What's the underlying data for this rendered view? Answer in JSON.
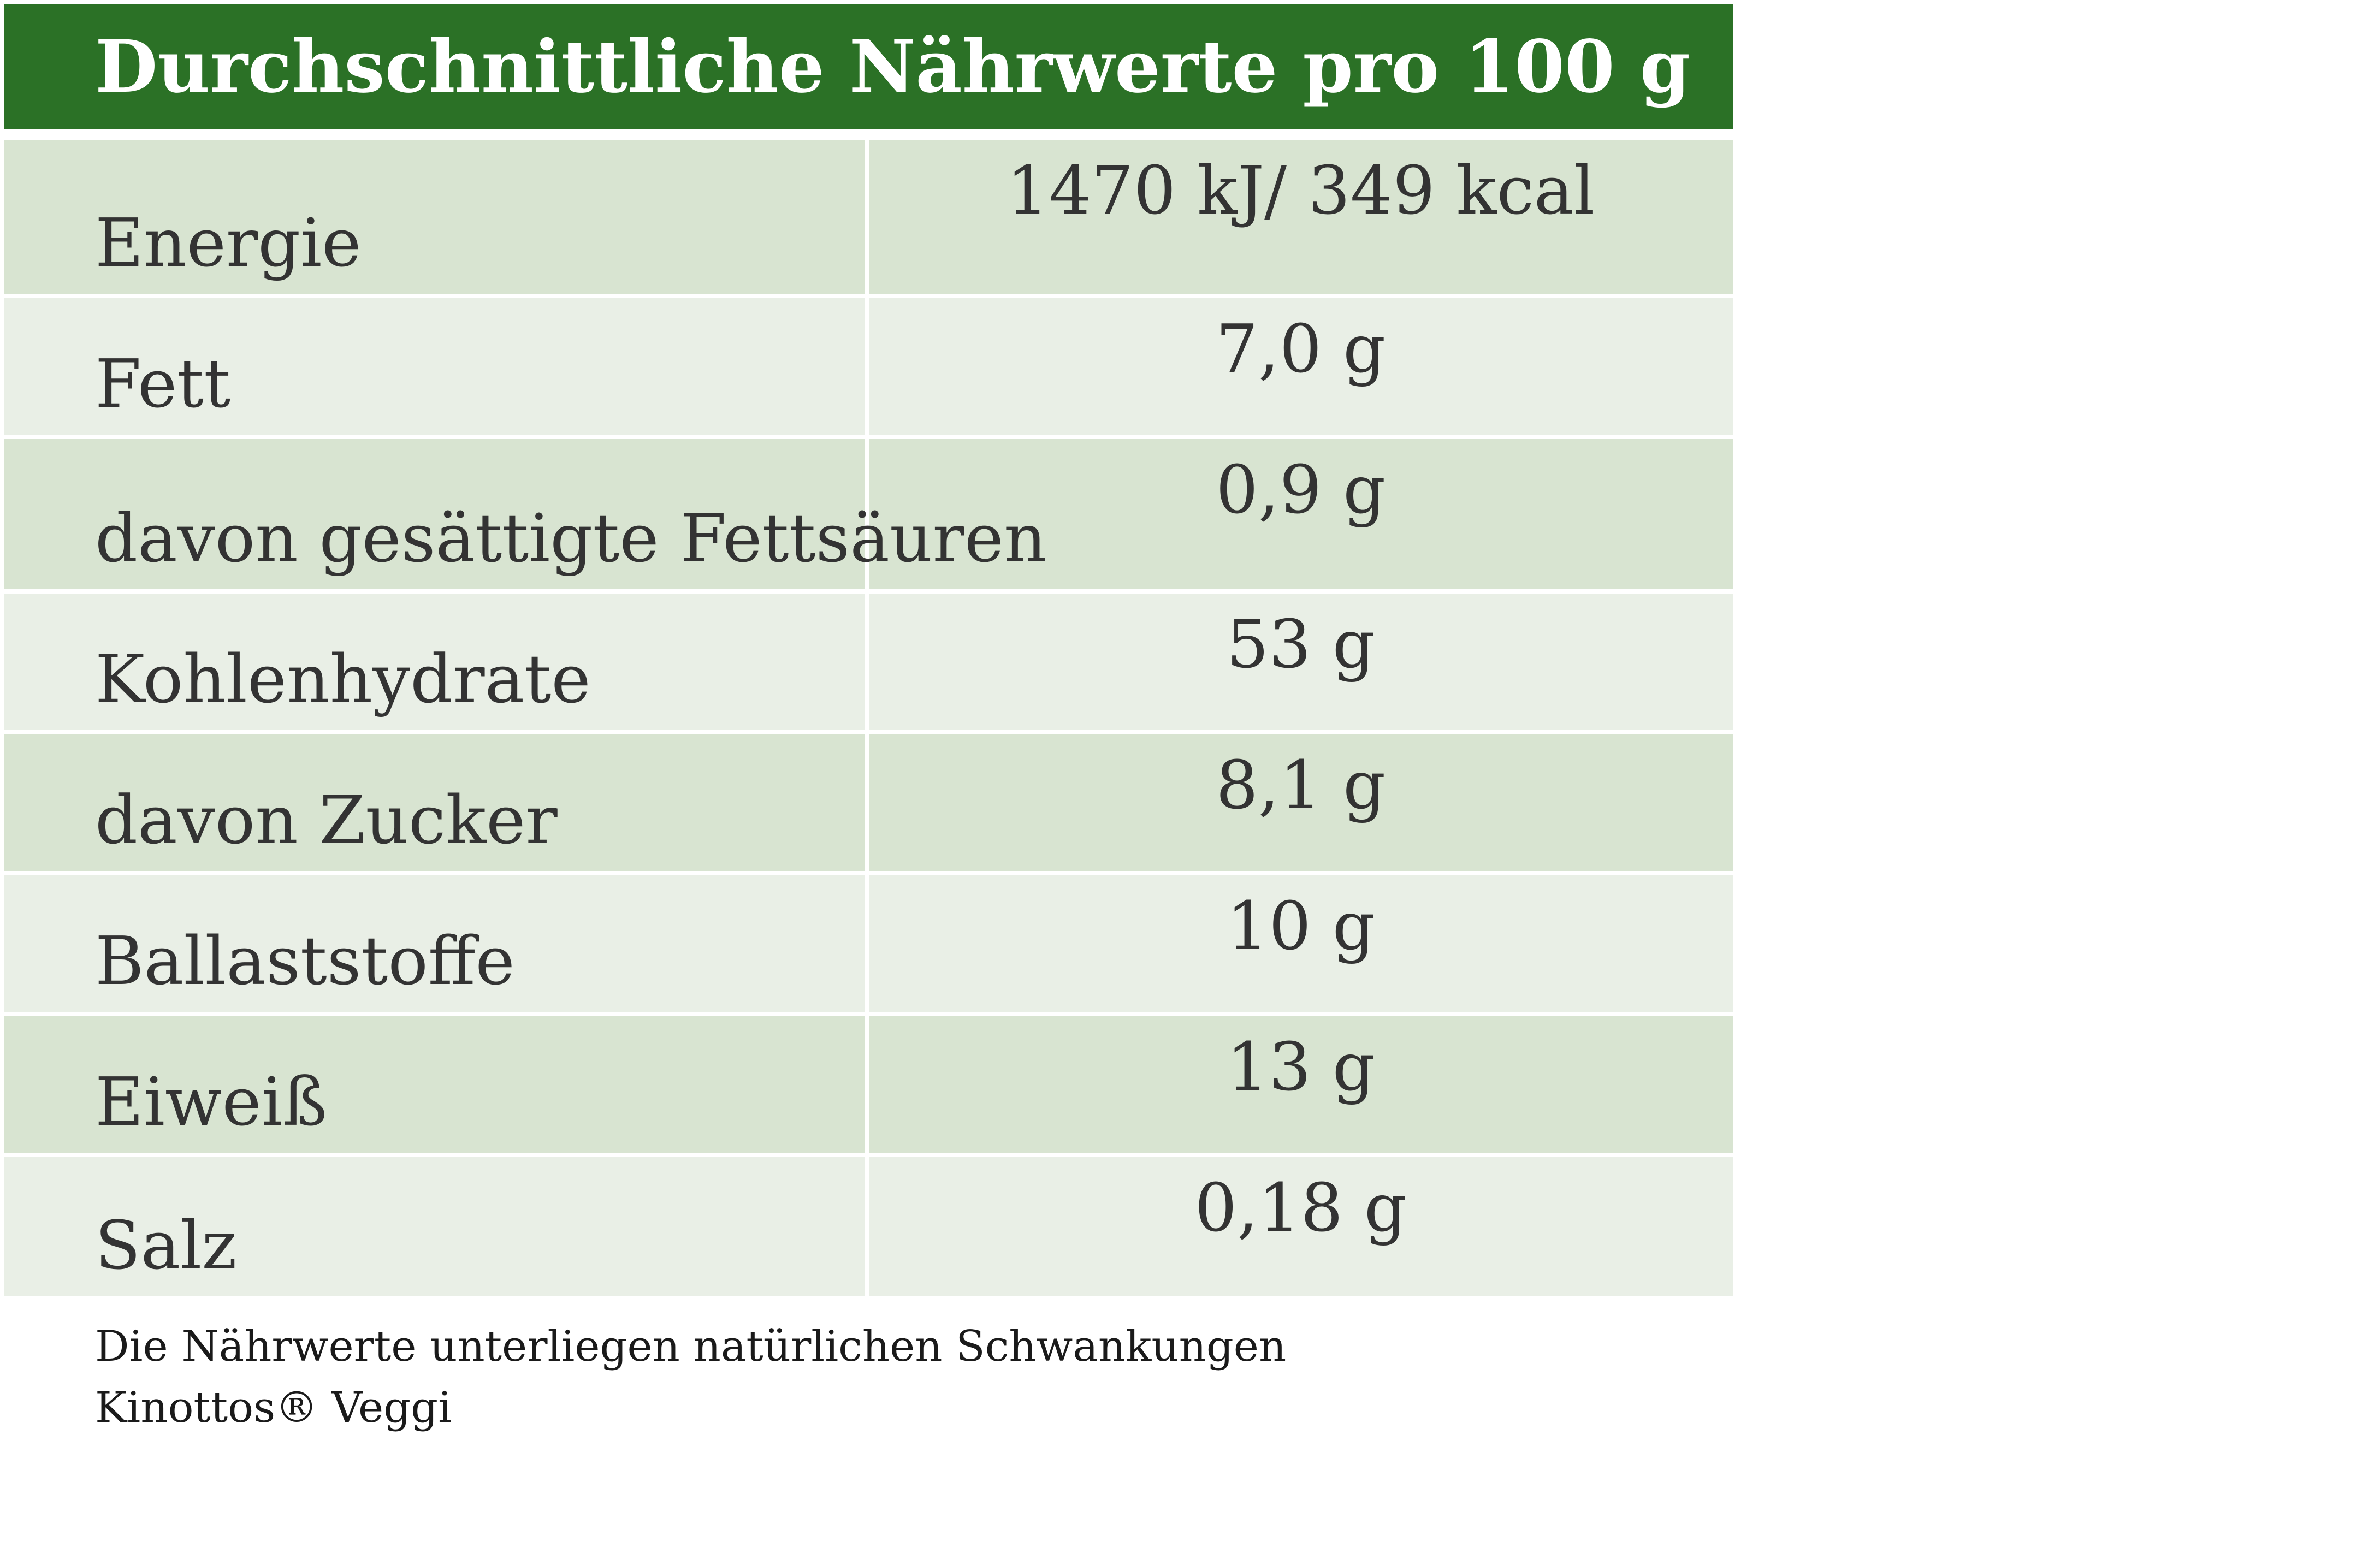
{
  "title": "Durchschnittliche Nährwerte pro 100 g",
  "rows": [
    {
      "name": "Energie",
      "value": "1470 kJ/ 349 kcal"
    },
    {
      "name": "Fett",
      "value": "7,0 g"
    },
    {
      "name": "davon gesättigte Fettsäuren",
      "value": "0,9 g"
    },
    {
      "name": "Kohlenhydrate",
      "value": "53 g"
    },
    {
      "name": "davon Zucker",
      "value": "8,1 g"
    },
    {
      "name": "Ballaststoffe",
      "value": "10 g"
    },
    {
      "name": "Eiweiß",
      "value": "13 g"
    },
    {
      "name": "Salz",
      "value": "0,18 g"
    }
  ],
  "footnote": {
    "line1": "Die Nährwerte unterliegen natürlichen Schwankungen",
    "line2": "Kinottos® Veggi"
  },
  "colors": {
    "header_green": "#2b7126",
    "row_dark": "#d8e4d1",
    "row_light": "#e9efe6",
    "text": "#333333"
  }
}
